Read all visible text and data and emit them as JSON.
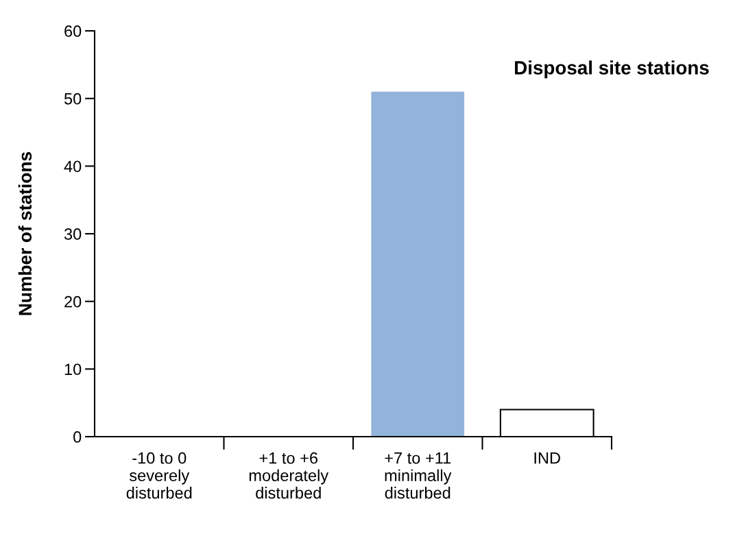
{
  "chart_data": {
    "type": "bar",
    "title": "Disposal site stations",
    "ylabel": "Number of stations",
    "categories": [
      "-10 to 0\nseverely\ndisturbed",
      "+1 to +6\nmoderately\ndisturbed",
      "+7 to +11\nminimally\ndisturbed",
      "IND"
    ],
    "values": [
      0,
      0,
      51,
      4
    ],
    "colors": [
      "#92b4da",
      "#92b4da",
      "#92b4da",
      "#ffffff"
    ],
    "ylim": [
      0,
      60
    ],
    "yticks": [
      0,
      10,
      20,
      30,
      40,
      50,
      60
    ],
    "grid": false,
    "legend": false
  }
}
